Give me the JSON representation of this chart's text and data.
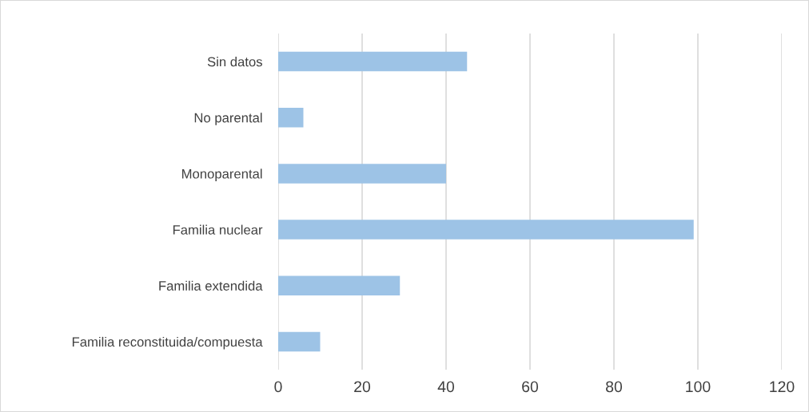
{
  "chart_data": {
    "type": "bar",
    "orientation": "horizontal",
    "categories": [
      "Sin datos",
      "No parental",
      "Monoparental",
      "Familia nuclear",
      "Familia extendida",
      "Familia reconstituida/compuesta"
    ],
    "values": [
      45,
      6,
      40,
      99,
      29,
      10
    ],
    "color": "#9dc3e6",
    "xlim": [
      0,
      120
    ],
    "xticks": [
      0,
      20,
      40,
      60,
      80,
      100,
      120
    ],
    "grid": "x",
    "legend": false
  }
}
